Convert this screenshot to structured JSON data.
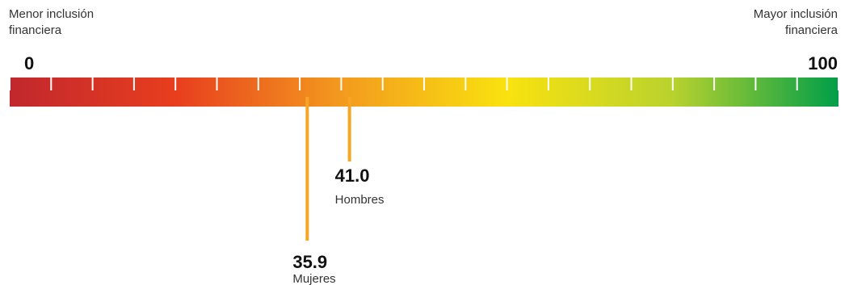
{
  "labels": {
    "left_line1": "Menor inclusión",
    "left_line2": "financiera",
    "right_line1": "Mayor inclusión",
    "right_line2": "financiera"
  },
  "chart_data": {
    "type": "gauge",
    "min": 0,
    "max": 100,
    "min_label": "0",
    "max_label": "100",
    "tick_step": 5,
    "gradient_colors": [
      "#c1272d",
      "#e83e1e",
      "#f39a1e",
      "#f9e20f",
      "#b9d22e",
      "#009e49"
    ],
    "marker_color": "#f5a623",
    "markers": [
      {
        "value": 35.9,
        "value_label": "35.9",
        "name": "Mujeres"
      },
      {
        "value": 41.0,
        "value_label": "41.0",
        "name": "Hombres"
      }
    ]
  }
}
